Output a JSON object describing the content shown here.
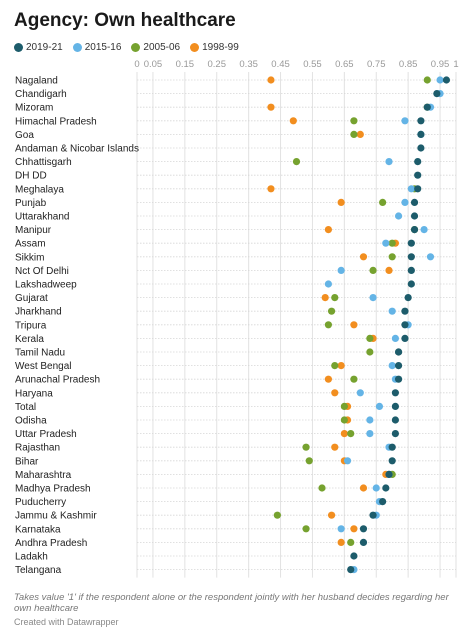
{
  "title": "Agency: Own healthcare",
  "note": "Takes value '1' if the respondent alone or the respondent jointly with her husband decides regarding her own healthcare",
  "credit": "Created with Datawrapper",
  "chart_data": {
    "type": "scatter",
    "title": "Agency: Own healthcare",
    "xlim": [
      0,
      1
    ],
    "x_ticks": [
      0,
      0.05,
      0.15,
      0.25,
      0.35,
      0.45,
      0.55,
      0.65,
      0.75,
      0.85,
      0.95,
      1
    ],
    "x_tick_labels": [
      "0",
      "0.05",
      "0.15",
      "0.25",
      "0.35",
      "0.45",
      "0.55",
      "0.65",
      "0.75",
      "0.85",
      "0.95",
      "1"
    ],
    "grid": true,
    "legend_position": "top-left",
    "categories": [
      "Nagaland",
      "Chandigarh",
      "Mizoram",
      "Himachal Pradesh",
      "Goa",
      "Andaman & Nicobar Islands",
      "Chhattisgarh",
      "DH DD",
      "Meghalaya",
      "Punjab",
      "Uttarakhand",
      "Manipur",
      "Assam",
      "Sikkim",
      "Nct Of Delhi",
      "Lakshadweep",
      "Gujarat",
      "Jharkhand",
      "Tripura",
      "Kerala",
      "Tamil Nadu",
      "West Bengal",
      "Arunachal Pradesh",
      "Haryana",
      "Total",
      "Odisha",
      "Uttar Pradesh",
      "Rajasthan",
      "Bihar",
      "Maharashtra",
      "Madhya Pradesh",
      "Puducherry",
      "Jammu & Kashmir",
      "Karnataka",
      "Andhra Pradesh",
      "Ladakh",
      "Telangana"
    ],
    "series": [
      {
        "name": "1998-99",
        "color": "#f28e1f",
        "values": [
          0.42,
          null,
          0.42,
          0.49,
          0.7,
          null,
          null,
          null,
          0.42,
          0.64,
          null,
          0.6,
          0.81,
          0.71,
          0.79,
          null,
          0.59,
          null,
          0.68,
          0.74,
          0.82,
          0.64,
          0.6,
          0.62,
          0.66,
          0.66,
          0.65,
          0.62,
          0.65,
          0.78,
          0.71,
          null,
          0.61,
          0.68,
          0.64,
          null,
          null
        ]
      },
      {
        "name": "2005-06",
        "color": "#76a22f",
        "values": [
          0.91,
          null,
          0.91,
          0.68,
          0.68,
          null,
          0.5,
          null,
          0.87,
          0.77,
          null,
          0.87,
          0.8,
          0.8,
          0.74,
          null,
          0.62,
          0.61,
          0.6,
          0.73,
          0.73,
          0.62,
          0.68,
          null,
          0.65,
          0.65,
          0.67,
          0.53,
          0.54,
          0.8,
          0.58,
          null,
          0.44,
          0.53,
          0.67,
          null,
          null
        ]
      },
      {
        "name": "2015-16",
        "color": "#64b4e6",
        "values": [
          0.95,
          0.95,
          0.92,
          0.84,
          0.89,
          null,
          0.79,
          null,
          0.86,
          0.84,
          0.82,
          0.9,
          0.78,
          0.92,
          0.64,
          0.6,
          0.74,
          0.8,
          0.85,
          0.81,
          0.82,
          0.8,
          0.81,
          0.7,
          0.76,
          0.73,
          0.73,
          0.79,
          0.66,
          0.79,
          0.75,
          0.76,
          0.75,
          0.64,
          null,
          null,
          0.68
        ]
      },
      {
        "name": "2019-21",
        "color": "#1d5c6b",
        "values": [
          0.97,
          0.94,
          0.91,
          0.89,
          0.89,
          0.89,
          0.88,
          0.88,
          0.88,
          0.87,
          0.87,
          0.87,
          0.86,
          0.86,
          0.86,
          0.86,
          0.85,
          0.84,
          0.84,
          0.84,
          0.82,
          0.82,
          0.82,
          0.81,
          0.81,
          0.81,
          0.81,
          0.8,
          0.8,
          0.79,
          0.78,
          0.77,
          0.74,
          0.71,
          0.71,
          0.68,
          0.67
        ]
      }
    ]
  }
}
